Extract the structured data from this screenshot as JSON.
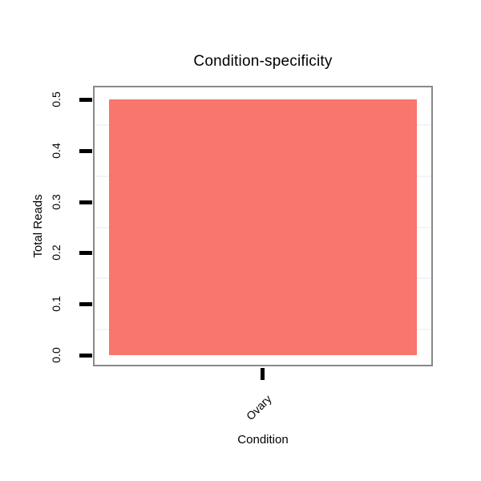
{
  "chart_data": {
    "type": "bar",
    "title": "Condition-specificity",
    "xlabel": "Condition",
    "ylabel": "Total Reads",
    "categories": [
      "Ovary"
    ],
    "values": [
      0.5
    ],
    "series": [
      {
        "name": "Total Reads",
        "values": [
          0.5
        ]
      }
    ],
    "ylim": [
      -0.025,
      0.525
    ],
    "ytick_values": [
      0.0,
      0.1,
      0.2,
      0.3,
      0.4,
      0.5
    ],
    "ytick_labels": [
      "0.0",
      "0.1",
      "0.2",
      "0.3",
      "0.4",
      "0.5"
    ],
    "minor_grid_values": [
      0.05,
      0.15,
      0.25,
      0.35,
      0.45
    ],
    "x_tick_label_angle_deg": 45,
    "y_tick_label_angle_deg": 90,
    "legend": "none",
    "grid": "minor horizontal gridlines only",
    "colors": {
      "bar_fill": "#F8766D",
      "panel_border": "#898989",
      "axis_tick": "#000000",
      "minor_gridline": "#F4F4F6",
      "text": "#000000",
      "background": "#FFFFFF"
    }
  }
}
